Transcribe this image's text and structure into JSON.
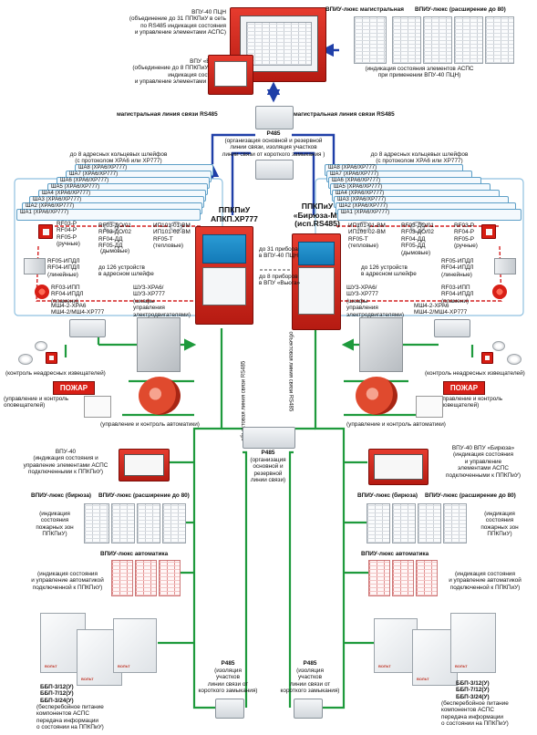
{
  "top": {
    "vpu40_pcn_label": "ВПУ-40 ПЦН\n(объединение до 31 ППКПиУ в сеть\nпо RS485 индикация состояния\nи управление элементами АСПС)",
    "vpu_vega_label": "ВПУ «Вьюга»\n(объединение до 8 ППКПиУ в сеть\nиндикация состояния\nи управление элементами АСПС)",
    "vpiu_lux_mag_title": "ВПИУ-люкс магистральная",
    "vpiu_lux_ext80_title": "ВПИУ-люкс (расширение до 80)",
    "vpiu_caption": "(индикация состояния элементов АСПС\nпри применении ВПУ-40 ПЦН)"
  },
  "mainline": {
    "left_label": "магистральная линия связи RS485",
    "right_label": "магистральная линия связи RS485",
    "r485_title": "Р485",
    "r485_desc": "(организация основной и резервной\nлинии связи, изоляция участков\nлинии связи от короткого замыкания )"
  },
  "left_group": {
    "header": "до 8 адресных кольцевых шлейфов\n(с протоколом ХРА6 или ХР777)",
    "shelves": [
      "ША8 (ХРА6/ХР777)",
      "ША7 (ХРА6/ХР777)",
      "ША6 (ХРА6/ХР777)",
      "ША5 (ХРА6/ХР777)",
      "ША4 (ХРА6/ХР777)",
      "ША3 (ХРА6/ХР777)",
      "ША2 (ХРА6/ХР777)",
      "ША1 (ХРА6/ХР777)"
    ],
    "manual_label": "RF03-Р\nRF04-Р\nRF05-Р\n(ручные)",
    "smoke_label": "RF03-ДО/01\nRF03-ДО/02\nRF04-ДД\nRF05-ДД",
    "heat_label": "ИП101-01-ВМ\nИП101-02-ВМ\nRF05-Т\n(тепловые)",
    "linear_label": "RF05-ИПДЛ\nRF04-ИПДЛ\n(линейные)",
    "smoke_note": "(дымовые)",
    "devices_count": "до 126 устройств\nв адресном шлейфе",
    "flame_label": "RF03-ИПП\nRF04-ИПДЛ\n(пламени)",
    "mcsh_label": "МШ4-2-ХРА6\nМШ4-2/МШ4-ХР777",
    "shu_label": "ШУЗ-ХРА6/\nШУЗ-ХР777\n(шкафы\nуправления\nэлектродвигателями)",
    "nonaddr_control": "(контроль неадресных извещателей)",
    "pozhar": "ПОЖАР",
    "warn_control": "(управление и контроль\nоповещателей)",
    "auto_control": "(управление и контроль автоматики)"
  },
  "right_group": {
    "header": "до 8 адресных кольцевых шлейфов\n(с протоколом ХРА6 или ХР777)",
    "shelves": [
      "ША8 (ХРА6/ХР777)",
      "ША7 (ХРА6/ХР777)",
      "ША6 (ХРА6/ХР777)",
      "ША5 (ХРА6/ХР777)",
      "ША4 (ХРА6/ХР777)",
      "ША3 (ХРА6/ХР777)",
      "ША2 (ХРА6/ХР777)",
      "ША1 (ХРА6/ХР777)"
    ],
    "heat_label": "ИП101-01-ВМ\nИП101-02-ВМ\nRF05-Т\n(тепловые)",
    "smoke_label": "RF03-ДО/01\nRF03-ДО/02\nRF04-ДД\nRF05-ДД\n(дымовые)",
    "manual_label": "RF03-Р\nRF04-Р\nRF05-Р\n(ручные)",
    "devices_count": "до 126 устройств\nв адресном шлейфе",
    "linear_label": "RF05-ИПДЛ\nRF04-ИПДЛ\n(линейные)",
    "shu_label": "ШУЗ-ХРА6/\nШУЗ-ХР777\n(шкафы\nуправления\nэлектродвигателями)",
    "flame_label": "RF03-ИПП\nRF04-ИПДЛ\n(пламени)",
    "mcsh_label": "МШ4-2-ХРА6\nМШ4-2/МШ4-ХР777",
    "nonaddr_control": "(контроль неадресных извещателей)",
    "pozhar": "ПОЖАР",
    "warn_control": "(управление и контроль\nоповещателей)",
    "auto_control": "(управление и контроль автоматики)"
  },
  "center": {
    "ppkpiu_left_title": "ППКПиУ\nАПКП.ХР777",
    "ppkpiu_right_title": "ППКПиУ\n«Бирюза-М»\n(исп.RS485)",
    "to31": "до 31 прибора\nв ВПУ-40 ПЦН",
    "to8": "до 8 приборов\nв ВПУ «Вьюга»",
    "trunk_left": "объектовая линия связи RS485",
    "trunk_right": "объектовая линия связи RS485",
    "r485_mid_title": "Р485",
    "r485_mid_desc": "(организация\nосновной и\nрезервной\nлинии связи)",
    "r485_bl_title": "Р485",
    "r485_bl_desc": "(изоляция\nучастков\nлинии связи от\nкороткого замыкания)",
    "r485_br_title": "Р485",
    "r485_br_desc": "(изоляция\nучастков\nлинии связи от\nкороткого замыкания)"
  },
  "lower_left": {
    "vpu40_label": "ВПУ-40\n(индикация состояния и\nуправление элементами АСПС\nподключенными к ППКПиУ)",
    "vpiu_lux_biryuza": "ВПИУ-люкс (бирюза)",
    "vpiu_lux_ext80": "ВПИУ-люкс (расширение до 80)",
    "zones_label": "(индикация\nсостояния\nпожарных зон\nППКПиУ)",
    "vpiu_auto_title": "ВПИУ-люкс автоматика",
    "auto_label": "(индикация состояния\nи управление автоматикой\nподключенной к ППКПиУ)",
    "bbp_label": "ББП-3/12(У)\nББП-7/12(У)\nББП-3/24(У)",
    "bbp_desc": "(бесперебойное питание\nкомпонентов АСПС\nпередача информации\nо состоянии на ППКПиУ)"
  },
  "lower_right": {
    "vpu40_label": "ВПУ-40   ВПУ «Бирюза»\n(индикация состояния\nи управление\nэлементами АСПС\nподключенными к ППКПиУ)",
    "vpiu_lux_biryuza": "ВПИУ-люкс (бирюза)",
    "vpiu_lux_ext80": "ВПИУ-люкс (расширение до 80)",
    "zones_label": "(индикация\nсостояния\nпожарных зон\nППКПиУ)",
    "vpiu_auto_title": "ВПИУ-люкс автоматика",
    "auto_label": "(индикация состояния\nи управление автоматикой\nподключенной к ППКПиУ)",
    "bbp_label": "ББП-3/12(У)\nББП-7/12(У)\nББП-3/24(У)",
    "bbp_desc": "(бесперебойное питание\nкомпонентов АСПС\nпередача информации\nо состоянии на ППКПиУ)"
  },
  "colors": {
    "rs485_blue": "#1f3fa8",
    "object_green": "#1e9a3c",
    "loop_red": "#d42020",
    "device_red": "#d81f16"
  }
}
